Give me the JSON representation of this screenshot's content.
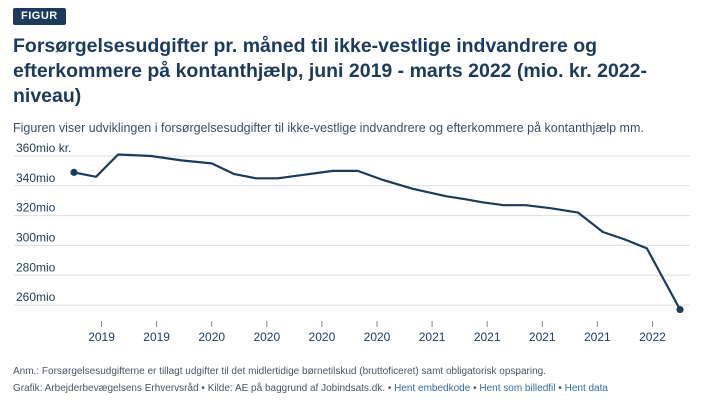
{
  "badge": "FIGUR",
  "title": "Forsørgelsesudgifter pr. måned til ikke-vestlige indvandrere og efterkommere på kontanthjælp, juni 2019 - marts 2022 (mio. kr. 2022-niveau)",
  "subtitle": "Figuren viser udviklingen i forsørgelsesudgifter til ikke-vestlige indvandrere og efterkommere på kontanthjælp mm.",
  "note": "Anm.: Forsørgelsesudgifterne er tillagt udgifter til det midlertidige børnetilskud (bruttoficeret) samt obligatorisk opsparing.",
  "credits": {
    "source": "Grafik: Arbejderbevægelsens Erhvervsråd • Kilde: AE på baggrund af Jobindsats.dk. •",
    "link_embed": "Hent embedkode",
    "link_image": "Hent som billedfil",
    "link_data": "Hent data",
    "separator": "•"
  },
  "colors": {
    "line": "#1b3a5c",
    "grid": "#dddddd",
    "text": "#1f3a5a"
  },
  "chart_data": {
    "type": "line",
    "title": "Forsørgelsesudgifter pr. måned til ikke-vestlige indvandrere og efterkommere på kontanthjælp, juni 2019 - marts 2022 (mio. kr. 2022-niveau)",
    "xlabel": "",
    "ylabel": "mio. kr.",
    "ylim": [
      252,
      364
    ],
    "yticks": [
      260,
      280,
      300,
      320,
      340,
      360
    ],
    "ytick_labels": [
      "260mio",
      "280mio",
      "300mio",
      "320mio",
      "340mio",
      "360mio kr."
    ],
    "x_tick_labels": [
      "2019",
      "2019",
      "2020",
      "2020",
      "2020",
      "2020",
      "2021",
      "2021",
      "2021",
      "2021",
      "2022"
    ],
    "x_tick_index": [
      1,
      3,
      5,
      7,
      9,
      11,
      13,
      15,
      17,
      19,
      21
    ],
    "series": [
      {
        "name": "Forsørgelsesudgifter",
        "x": [
          0,
          0.8,
          1.6,
          2.8,
          3.9,
          5,
          5.8,
          6.6,
          7.4,
          8.2,
          9.4,
          10.3,
          11.2,
          12.3,
          13.5,
          14.2,
          14.8,
          15.6,
          16.4,
          17.3,
          18.3,
          19.2,
          20,
          20.8,
          22
        ],
        "values": [
          349,
          346,
          361,
          360,
          357,
          355,
          348,
          345,
          345,
          347,
          350,
          350,
          344,
          338,
          333,
          331,
          329,
          327,
          327,
          325,
          322,
          309,
          304,
          298,
          257
        ],
        "markers_at": [
          0,
          24
        ]
      }
    ]
  }
}
